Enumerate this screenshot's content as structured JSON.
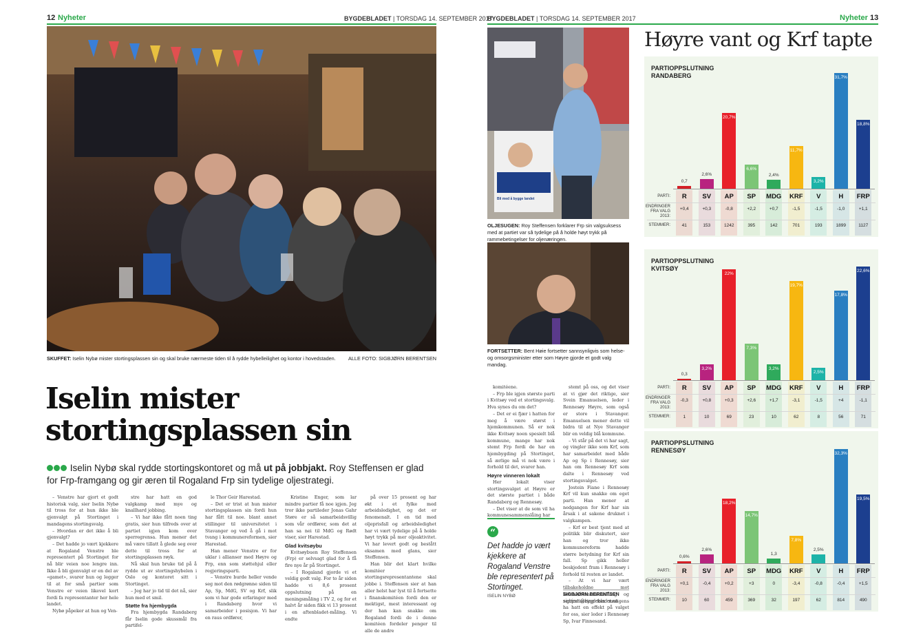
{
  "left_page": {
    "page_number": "12",
    "section": "Nyheter",
    "paper": "BYGDEBLADET",
    "date": "TORSDAG 14. SEPTEMBER 2017",
    "photo_caption_label": "SKUFFET:",
    "photo_caption": "Iselin Nybø mister stortingsplassen sin og skal bruke nærmeste tiden til å rydde hybelleilighet og kontor i hovedstaden.",
    "photo_credit": "ALLE FOTO: SIGBJØRN BERENTSEN",
    "headline_line1": "Iselin mister",
    "headline_line2": "stortingsplassen sin",
    "lead_part1": "Iselin Nybø skal rydde stortingskontoret og må ",
    "lead_bold": "ut på jobbjakt.",
    "lead_part2": " Roy Steffensen er glad for Frp-framgang og gir æren til Rogaland Frp sin tydelige oljestrategi.",
    "col1": [
      "– Venstre har gjort et godt historisk valg, sier Iselin Nybø til tross for at hun ikke ble gjenvalgt på Stortinget i mandagens stortingsvalg.",
      "– Hvordan er det ikke å bli gjenvalgt?",
      "– Det hadde jo vært kjekkere at Rogaland Venstre ble representert på Stortinget for nå blir veien noe lengre inn. Ikke å bli gjenvalgt er en del av «gamet», svarer hun og legger til at for små partier som Venstre er veien likevel kort fordi fa representanter her hele landet.",
      "Nybø påpeker at hun og Ven-"
    ],
    "col2": [
      "stre har hatt en god valgkamp med mye og knallhard jobbing.",
      "– Vi har ikke fått noen ting gratis, sier hun tilfreds over at partiet igjen kom over sperregrensa. Hun mener det må være tillatt å glede seg over dette til tross for at stortingsplassen røyk.",
      "Nå skal hun bruke tid på å rydde ut av stortingshybelen i Oslo og kontoret sitt i Stortinget.",
      "– Jeg har jo tid til det nå, sier hun med et smil."
    ],
    "col2_sub": "Støtte fra hjembygda",
    "col2_after": [
      "Fra hjembygda Randaberg får Iselin gode skussmål fra partifel-"
    ],
    "col3": [
      "le Thor Geir Harestad.",
      "– Det er trist at hun mister stortingsplassen sin fordi hun har fått til noe. blant annet stillinger til universitetet i Stavanger og ved å gå i mot tvang i kommunereformen, sier Harestad.",
      "Han mener Venstre er for uklar i allianser med Høyre og Frp, enn som støttehjul eller regjeringsparti.",
      "– Venstre burde heller vende seg mot den rødgrønne siden til Ap, Sp, MdG, SV og Krf, slik som vi har gode erfaringer med i Randaberg hvor vi samarbeider i posisjon. Vi har en raus ordfører,"
    ],
    "col4": [
      "Kristine Enger, som lar mindre partier få noe igjen. Jeg tror ikke partileder Jonas Gahr Støre er så samarbeidsvillig som vår ordfører, som det at han sa nei til MdG og Rødt viser, sier Harestad."
    ],
    "col4_sub": "Glad kvitsøybu",
    "col4_after": [
      "Kvitsøybuen Roy Steffensen (Frp) er selvsagt glad for å få fire nye år på Stortinget.",
      "– I Rogaland gjorde vi et veldig godt valg. For to år siden hadde vi 8,6 prosent oppslutning på en meningsmåling i TV 2, og for et halvt år siden fikk vi 13 prosent i en aftenbladet-måling. Vi endte"
    ],
    "col5": [
      "på over 15 prosent og har økt i et fylke med arbeidsledighet, og det er fenomenalt. I en tid med oljeprisfall og arbeidsledighet har vi vært tydelige på å holde høyt trykk på mer oljeaktivitet. Vi har levert godt og bestått eksamen med glans, sier Steffensen.",
      "Han blir det klart hvilke komitéer stortingsrepresentantene skal jobbe i. Steffensen sier at han aller helst har lyst til å fortsette i finanskomitéen fordi den er mektigst, mest interessant og der han kan snakke om Rogaland fordi de i denne komitéen fordeler penger til alle de andre"
    ]
  },
  "right_page": {
    "page_number": "13",
    "section": "Nyheter",
    "paper": "BYGDEBLADET",
    "date": "TORSDAG 14. SEPTEMBER 2017",
    "title": "Høyre vant og Krf tapte",
    "photo1_caption_label": "OLJESUGEN:",
    "photo1_caption": "Roy Steffensen forklarer Frp sin valgsuksess med at partiet var så tydelige på å holde høyt trykk på rammebetingelser for oljenæringen.",
    "poster_text": "Bli med å bygge landet",
    "photo2_caption_label": "FORTSETTER:",
    "photo2_caption": "Bent Høie fortsetter sannsynligvis som helse- og omsorgsminister etter som Høyre gjorde et godt valg mandag.",
    "colA": [
      "komitéene.",
      "– Frp ble igjen største parti i Kvitsøy ved et stortingsvalg. Hva synes du om det?",
      "– Det er ei fjær i hatten for meg å være størst i hjemkommunen. Så er nok ikke Kvitsøy noen spesielt blå kommune, mange har nok stemt Frp fordi de har en hjembygding på Stortinget, så ærlige må vi nok være i forhold til det, svarer han."
    ],
    "colA_sub": "Høyre vinneren lokalt",
    "colA_after": [
      "Her lokalt viser stortingsvalget at Høyre er det største partiet i både Randaberg og Rennesøy.",
      "– Det viser at de som vil ha kommunesammenslåing har"
    ],
    "quote": "Det hadde jo vært kjekkere at Rogaland Venstre ble representert på Stortinget.",
    "quote_author": "ISELIN NYBØ",
    "colB": [
      "stemt på oss, og det viser at vi gjør det riktige, sier Svein Emanuelsen, leder i Rennesøy Høyre, som også er store i Stavanger. Emanuelsen mener dette vil bidra til at Nye Stavanger blir en veldig blå kommune.",
      "– Vi står på det vi har sagt, og vingler ikke som Krf, som har samarbeidet med både Ap og Sp i Rennesøy, sier han om Rennesøy Krf som dalte i Rennesøy ved stortingsvalget.",
      "Jostein Fiane i Rennesøy Krf vil kun snakke om eget parti. Han mener at nedgangen for Krf har sin årsak i at sakene druknet i valgkampen.",
      "– Krf er best tjent med at politikk blir diskutert, sier han og tror ikke kommunereform hadde større betydning for Krf sin fall. Sp gikk heller beskjedent fram i Rennesøy i forhold til resten av landet.",
      "– At vi har vært tilbakeholdne mot kommunesammenslåing og sentralisering kan muligens ha hatt en effekt på valget for oss, sier leder i Rennesøy Sp, Ivar Finnesand."
    ],
    "byline": "SIGBJØRN BERENTSEN",
    "byline_email": "sigbjorn@bygdebladet.no"
  },
  "chart_row_labels": {
    "party": "PARTI:",
    "change_line1": "ENDRINGER",
    "change_line2": "FRA VALG 2013:",
    "votes": "STEMMER:"
  },
  "chart_data": [
    {
      "type": "bar",
      "title_line1": "PARTIOPPSLUTNING",
      "title_line2": "RANDABERG",
      "categories": [
        "R",
        "SV",
        "AP",
        "SP",
        "MDG",
        "KRF",
        "V",
        "H",
        "FRP"
      ],
      "values": [
        0.7,
        2.6,
        20.7,
        6.6,
        2.4,
        11.7,
        3.2,
        31.7,
        18.8
      ],
      "value_labels": [
        "0,7",
        "2,6%",
        "20,7%",
        "6,6%",
        "2,4%",
        "11,7%",
        "3,2%",
        "31,7%",
        "18,8%"
      ],
      "changes": [
        "+0,4",
        "+0,3",
        "-0,8",
        "+2,2",
        "+0,7",
        "-1,5",
        "-1,5",
        "-1,0",
        "+1,1"
      ],
      "votes": [
        "41",
        "153",
        "1242",
        "395",
        "142",
        "701",
        "193",
        "1899",
        "1127"
      ],
      "ylim": [
        0,
        32
      ]
    },
    {
      "type": "bar",
      "title_line1": "PARTIOPPSLUTNING",
      "title_line2": "KVITSØY",
      "categories": [
        "R",
        "SV",
        "AP",
        "SP",
        "MDG",
        "KRF",
        "V",
        "H",
        "FRP"
      ],
      "values": [
        0.3,
        3.2,
        22,
        7.3,
        3.2,
        19.7,
        2.5,
        17.8,
        22.6
      ],
      "value_labels": [
        "0,3",
        "3,2%",
        "22%",
        "7,3%",
        "3,2%",
        "19,7%",
        "2,5%",
        "17,8%",
        "22,6%"
      ],
      "changes": [
        "-0,3",
        "+0,8",
        "+0,3",
        "+2,6",
        "+1,7",
        "-3,1",
        "-1,5",
        "+4",
        "-1,1"
      ],
      "votes": [
        "1",
        "10",
        "69",
        "23",
        "10",
        "62",
        "8",
        "56",
        "71"
      ],
      "ylim": [
        0,
        23
      ]
    },
    {
      "type": "bar",
      "title_line1": "PARTIOPPSLUTNING",
      "title_line2": "RENNESØY",
      "categories": [
        "R",
        "SV",
        "AP",
        "SP",
        "MDG",
        "KRF",
        "V",
        "H",
        "FRP"
      ],
      "values": [
        0.6,
        2.6,
        18.2,
        14.7,
        1.3,
        7.8,
        2.5,
        32.3,
        19.5
      ],
      "value_labels": [
        "0,6%",
        "2,6%",
        "18,2%",
        "14,7%",
        "1,3",
        "7,8%",
        "2,5%",
        "32,3%",
        "19,5%"
      ],
      "changes": [
        "+0,1",
        "-0,4",
        "+0,2",
        "+3",
        "0",
        "-3,4",
        "-0,8",
        "-0,4",
        "+1,5"
      ],
      "votes": [
        "10",
        "60",
        "459",
        "369",
        "32",
        "197",
        "62",
        "814",
        "490"
      ],
      "ylim": [
        0,
        33
      ]
    }
  ],
  "party_colors": [
    "#d42027",
    "#b8237f",
    "#e8202a",
    "#7cc576",
    "#2faa5c",
    "#f7b711",
    "#1db3a8",
    "#2a7fc1",
    "#1c3f8f"
  ]
}
